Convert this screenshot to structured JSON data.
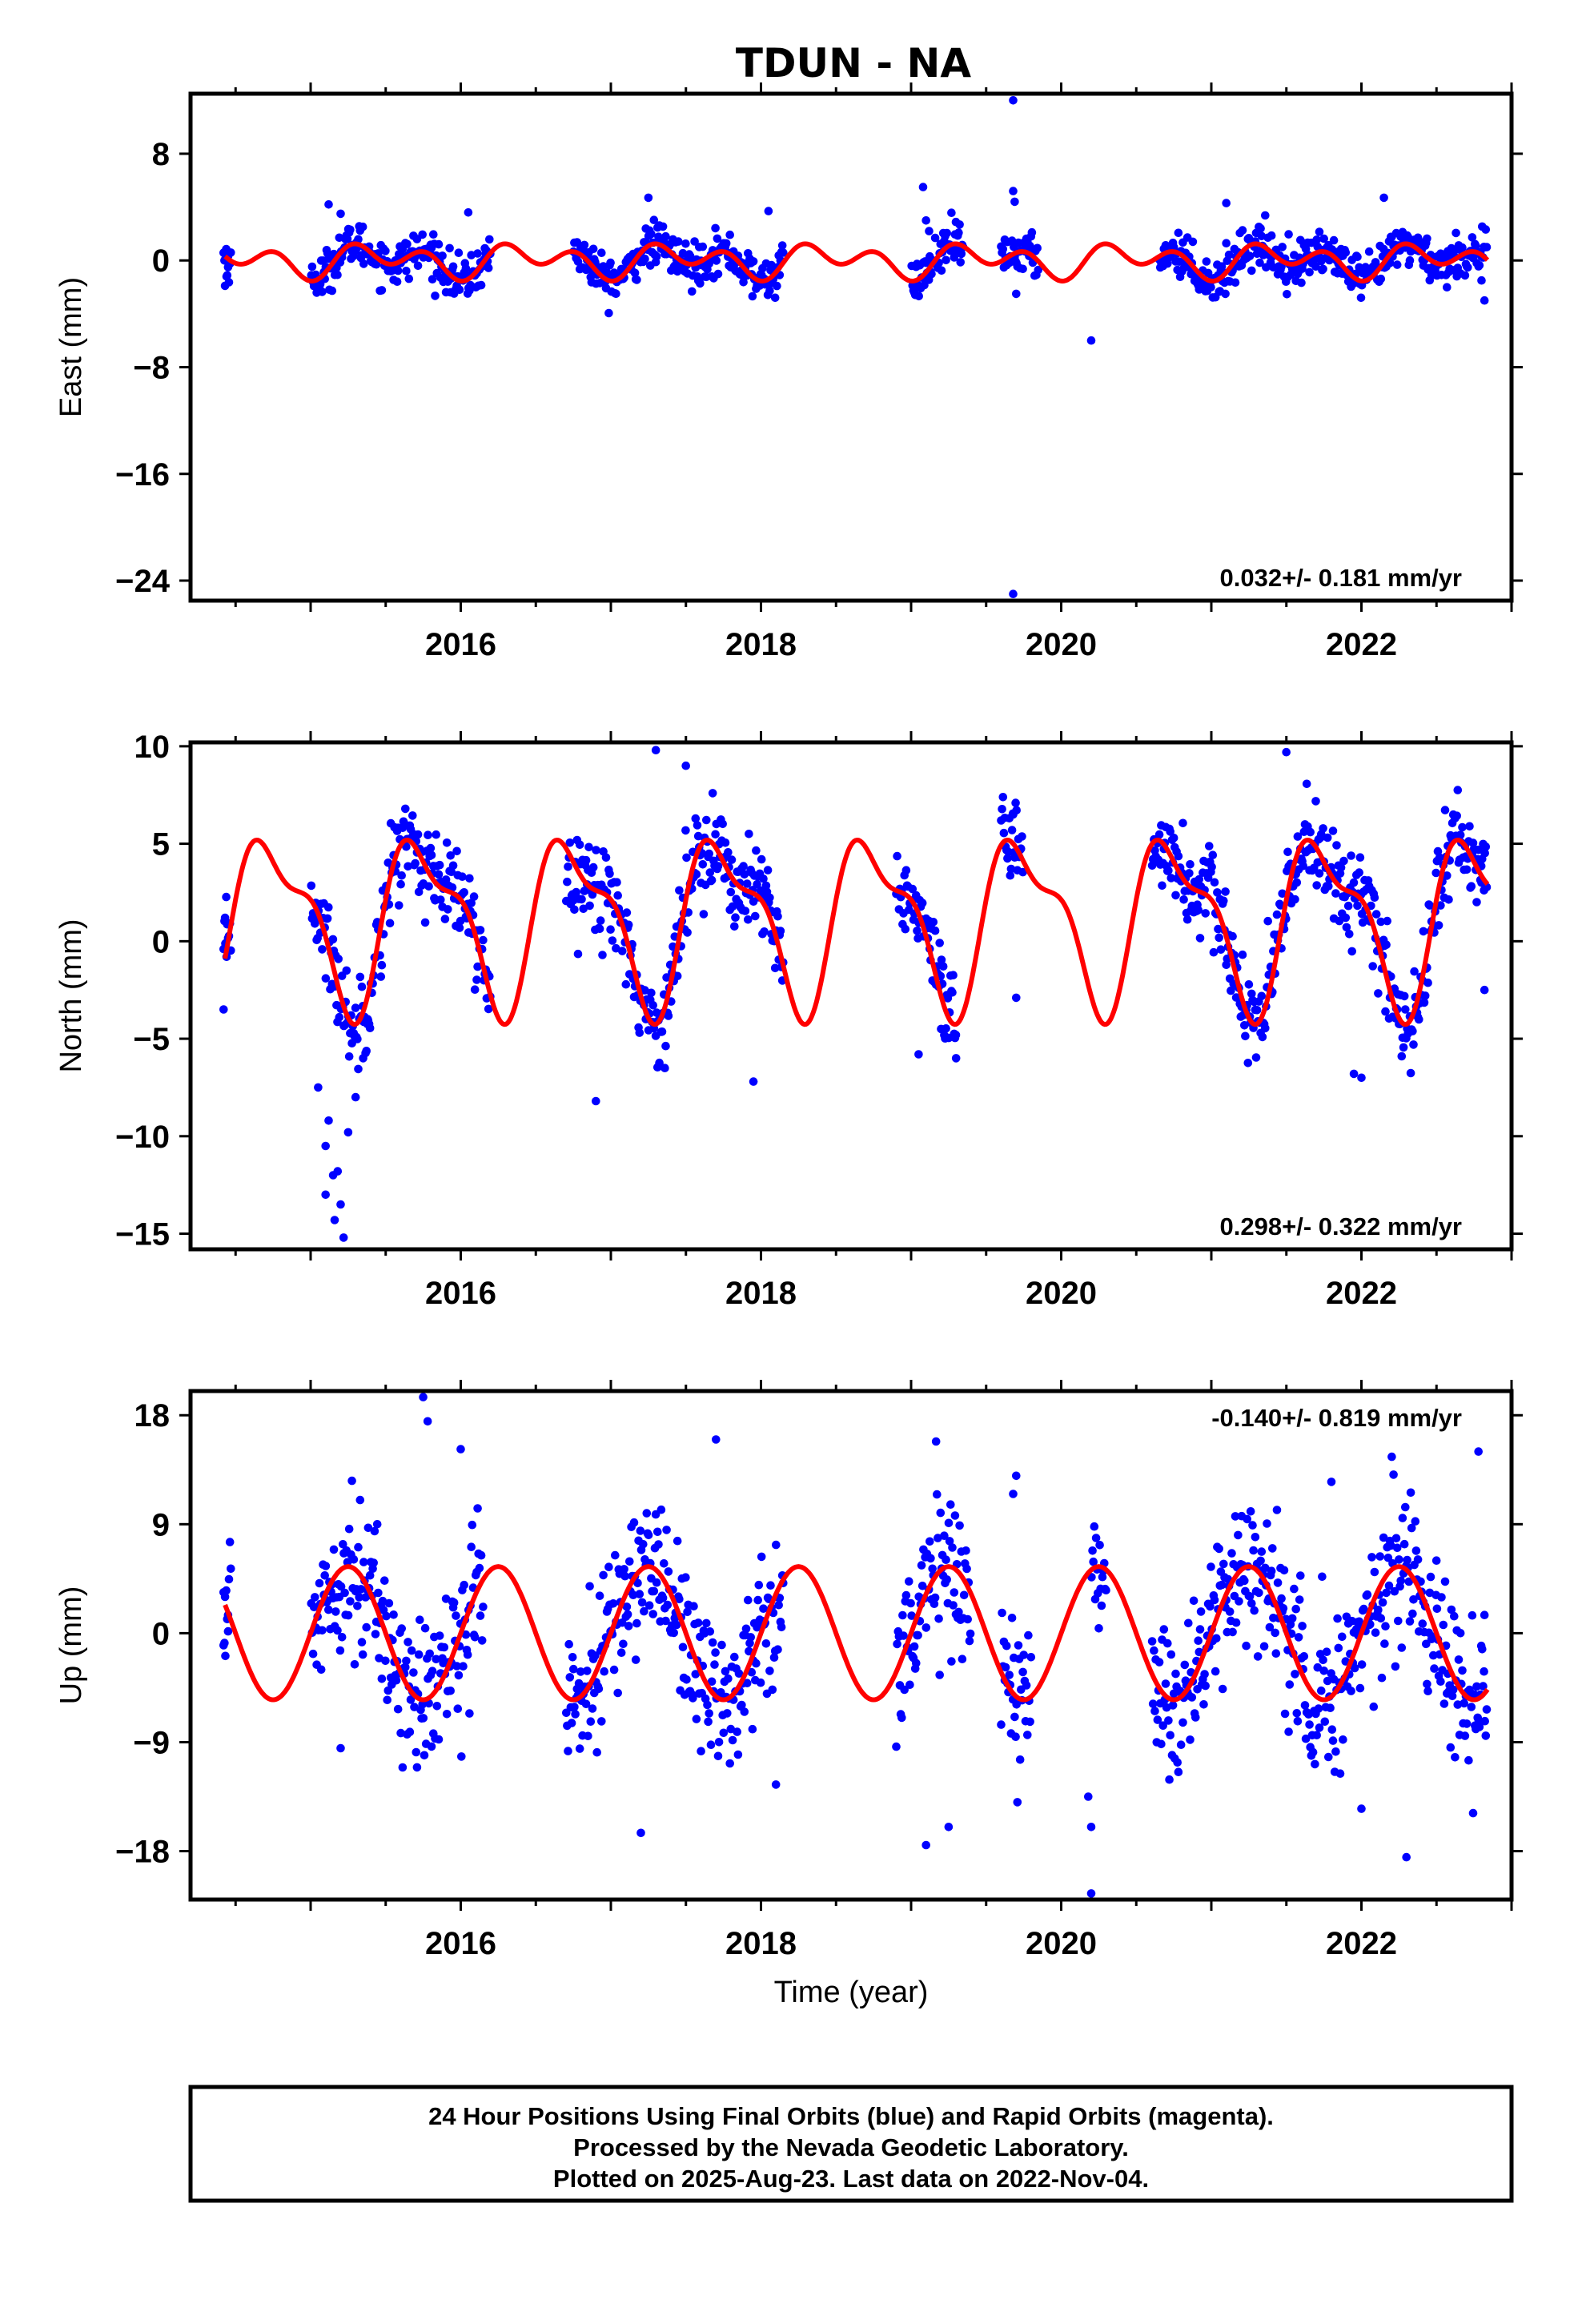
{
  "title": "TDUN - NA",
  "colors": {
    "points": "#0000ff",
    "fit": "#ff0000",
    "frame": "#000000"
  },
  "footer": {
    "line1": "24 Hour Positions Using Final Orbits (blue) and Rapid Orbits (magenta).",
    "line2": "Processed by the Nevada Geodetic Laboratory.",
    "line3": "Plotted on 2025-Aug-23. Last data on 2022-Nov-04."
  },
  "chart_data": [
    {
      "type": "scatter",
      "ylabel": "East (mm)",
      "xlabel": "",
      "rate_label": "0.032+/- 0.181 mm/yr",
      "rate_position": "bottom-right",
      "xlim": [
        2014.2,
        2023.0
      ],
      "ylim": [
        -25.5,
        12.5
      ],
      "xticks": [
        2016,
        2018,
        2020,
        2022
      ],
      "xtick_labels": [
        "2016",
        "2018",
        "2020",
        "2022"
      ],
      "yticks": [
        8,
        0,
        -8,
        -16,
        -24
      ],
      "ytick_labels": [
        "8",
        "0",
        "−8",
        "−16",
        "−24"
      ],
      "fit": {
        "annual_amp": 0.7,
        "semiannual_amp": 0.9,
        "phase": 0.2,
        "offset": 0.0
      },
      "gaps": [
        [
          2014.47,
          2015.0
        ],
        [
          2016.2,
          2016.75
        ],
        [
          2018.15,
          2019.0
        ],
        [
          2019.35,
          2019.6
        ],
        [
          2019.85,
          2020.65
        ]
      ],
      "noise": 0.8,
      "points": [
        [
          2014.43,
          -1.9
        ],
        [
          2014.45,
          -0.5
        ],
        [
          2014.44,
          -1.2
        ],
        [
          2015.12,
          4.2
        ],
        [
          2015.2,
          3.5
        ],
        [
          2016.05,
          3.6
        ],
        [
          2017.25,
          4.7
        ],
        [
          2018.05,
          3.7
        ],
        [
          2019.08,
          5.5
        ],
        [
          2019.1,
          3.0
        ],
        [
          2019.12,
          2.2
        ],
        [
          2019.68,
          12.0
        ],
        [
          2019.68,
          -25.0
        ],
        [
          2019.68,
          5.2
        ],
        [
          2019.7,
          -2.5
        ],
        [
          2019.69,
          4.4
        ],
        [
          2020.2,
          -6.0
        ],
        [
          2021.1,
          4.3
        ],
        [
          2022.15,
          4.7
        ],
        [
          2022.82,
          -3.0
        ],
        [
          2022.8,
          -1.5
        ]
      ]
    },
    {
      "type": "scatter",
      "ylabel": "North (mm)",
      "xlabel": "",
      "rate_label": "0.298+/- 0.322 mm/yr",
      "rate_position": "bottom-right",
      "xlim": [
        2014.2,
        2023.0
      ],
      "ylim": [
        -15.8,
        10.2
      ],
      "xticks": [
        2016,
        2018,
        2020,
        2022
      ],
      "xtick_labels": [
        "2016",
        "2018",
        "2020",
        "2022"
      ],
      "yticks": [
        10,
        5,
        0,
        -5,
        -10,
        -15
      ],
      "ytick_labels": [
        "10",
        "5",
        "0",
        "−5",
        "−10",
        "−15"
      ],
      "fit": {
        "annual_amp": 4.0,
        "semiannual_amp": 1.6,
        "phase": 0.5,
        "offset": 1.1
      },
      "gaps": [
        [
          2014.47,
          2015.0
        ],
        [
          2016.2,
          2016.7
        ],
        [
          2018.15,
          2018.9
        ],
        [
          2019.3,
          2019.6
        ],
        [
          2019.75,
          2020.6
        ]
      ],
      "noise": 1.2,
      "points": [
        [
          2014.42,
          -3.5
        ],
        [
          2014.43,
          1.2
        ],
        [
          2014.44,
          -0.8
        ],
        [
          2015.05,
          -7.5
        ],
        [
          2015.1,
          -10.5
        ],
        [
          2015.15,
          -12.0
        ],
        [
          2015.2,
          -13.5
        ],
        [
          2015.22,
          -15.2
        ],
        [
          2015.18,
          -11.8
        ],
        [
          2015.12,
          -9.2
        ],
        [
          2015.25,
          -9.8
        ],
        [
          2015.3,
          -8.0
        ],
        [
          2015.35,
          -6.0
        ],
        [
          2015.38,
          -4.0
        ],
        [
          2015.1,
          -13.0
        ],
        [
          2015.16,
          -14.3
        ],
        [
          2017.3,
          9.8
        ],
        [
          2017.5,
          9.0
        ],
        [
          2016.9,
          -8.2
        ],
        [
          2017.95,
          -7.2
        ],
        [
          2019.05,
          -5.8
        ],
        [
          2019.2,
          -4.5
        ],
        [
          2019.3,
          -6.0
        ],
        [
          2019.7,
          -2.9
        ],
        [
          2019.68,
          6.5
        ],
        [
          2021.5,
          9.7
        ],
        [
          2022.0,
          -7.0
        ],
        [
          2021.95,
          -6.8
        ],
        [
          2022.8,
          3.0
        ],
        [
          2022.82,
          -2.5
        ]
      ]
    },
    {
      "type": "scatter",
      "ylabel": "Up (mm)",
      "xlabel": "Time (year)",
      "rate_label": "-0.140+/- 0.819 mm/yr",
      "rate_position": "top-right",
      "xlim": [
        2014.2,
        2023.0
      ],
      "ylim": [
        -22.0,
        20.0
      ],
      "xticks": [
        2016,
        2018,
        2020,
        2022
      ],
      "xtick_labels": [
        "2016",
        "2018",
        "2020",
        "2022"
      ],
      "yticks": [
        18,
        9,
        0,
        -9,
        -18
      ],
      "ytick_labels": [
        "18",
        "9",
        "0",
        "−9",
        "−18"
      ],
      "fit": {
        "annual_amp": 5.5,
        "semiannual_amp": 0.0,
        "phase": 0.0,
        "offset": 0.0
      },
      "gaps": [
        [
          2014.47,
          2015.0
        ],
        [
          2016.15,
          2016.7
        ],
        [
          2018.15,
          2018.9
        ],
        [
          2019.4,
          2019.6
        ],
        [
          2019.8,
          2020.2
        ],
        [
          2020.3,
          2020.6
        ]
      ],
      "noise": 3.2,
      "points": [
        [
          2014.42,
          -1.0
        ],
        [
          2014.43,
          3.0
        ],
        [
          2014.45,
          1.5
        ],
        [
          2015.2,
          -9.5
        ],
        [
          2015.75,
          19.5
        ],
        [
          2015.78,
          17.5
        ],
        [
          2016.0,
          15.2
        ],
        [
          2017.2,
          -16.5
        ],
        [
          2017.7,
          16.0
        ],
        [
          2018.1,
          -12.5
        ],
        [
          2019.1,
          -17.5
        ],
        [
          2019.25,
          -16.0
        ],
        [
          2019.7,
          13.0
        ],
        [
          2019.68,
          11.5
        ],
        [
          2020.2,
          -21.5
        ],
        [
          2020.2,
          -16.0
        ],
        [
          2020.18,
          -13.5
        ],
        [
          2021.8,
          12.5
        ],
        [
          2022.0,
          -14.5
        ],
        [
          2022.3,
          -18.5
        ],
        [
          2022.78,
          15.0
        ],
        [
          2022.82,
          1.5
        ],
        [
          2022.5,
          6.0
        ]
      ]
    }
  ]
}
